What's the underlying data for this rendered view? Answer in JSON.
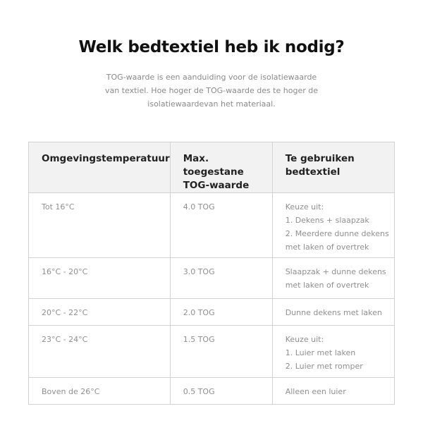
{
  "title": "Welk bedtextiel heb ik nodig?",
  "intro": "TOG-waarde is een aanduiding voor de isolatiewaarde van textiel. Hoe hoger de TOG-waarde des te hoger de isolatiewaardevan het materiaal.",
  "table": {
    "headers": [
      "Omgevingstemperatuur",
      "Max. toegestane TOG-waarde",
      "Te gebruiken bedtextiel"
    ],
    "rows": [
      {
        "temp": "Tot 16°C",
        "tog": "4.0 TOG",
        "textile": [
          "Keuze uit:",
          "1. Dekens + slaapzak",
          "2. Meerdere dunne dekens met laken of overtrek"
        ]
      },
      {
        "temp": "16°C - 20°C",
        "tog": "3.0 TOG",
        "textile": [
          "Slaapzak + dunne dekens met laken of overtrek"
        ]
      },
      {
        "temp": "20°C - 22°C",
        "tog": "2.0 TOG",
        "textile": [
          "Dunne dekens met laken"
        ]
      },
      {
        "temp": "23°C - 24°C",
        "tog": "1.5 TOG",
        "textile": [
          "Keuze uit:",
          "1. Luier met laken",
          "2. Luier met romper"
        ]
      },
      {
        "temp": "Boven de 26°C",
        "tog": "0.5 TOG",
        "textile": [
          "Alleen een luier"
        ]
      }
    ]
  }
}
